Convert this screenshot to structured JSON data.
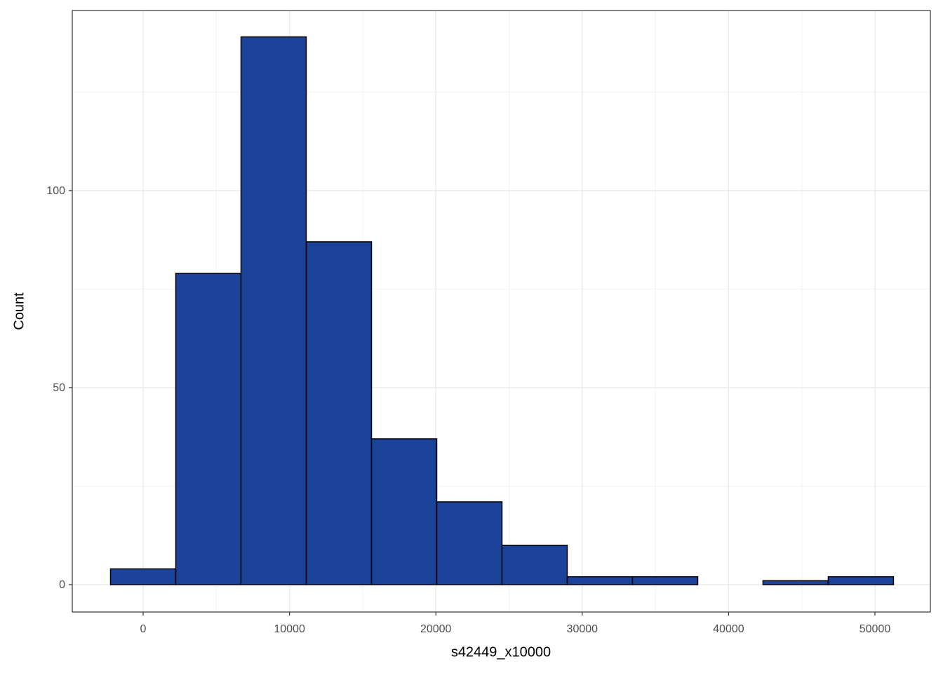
{
  "chart_data": {
    "type": "histogram",
    "x_label": "s42449_x10000",
    "y_label": "Count",
    "bins": [
      -2229,
      2229,
      6687,
      11145,
      15603,
      20061,
      24519,
      28977,
      33435,
      37893,
      42351,
      46809,
      51267
    ],
    "values": [
      4,
      79,
      139,
      87,
      37,
      21,
      10,
      2,
      2,
      0,
      1,
      2
    ],
    "color": "#1a4399",
    "xlim": [
      -4842,
      53787
    ],
    "xticks": [
      0,
      10000,
      20000,
      30000,
      40000,
      50000
    ],
    "ylim": [
      -6.95,
      145.7
    ],
    "yticks": [
      0,
      50,
      100
    ],
    "grid": true
  }
}
